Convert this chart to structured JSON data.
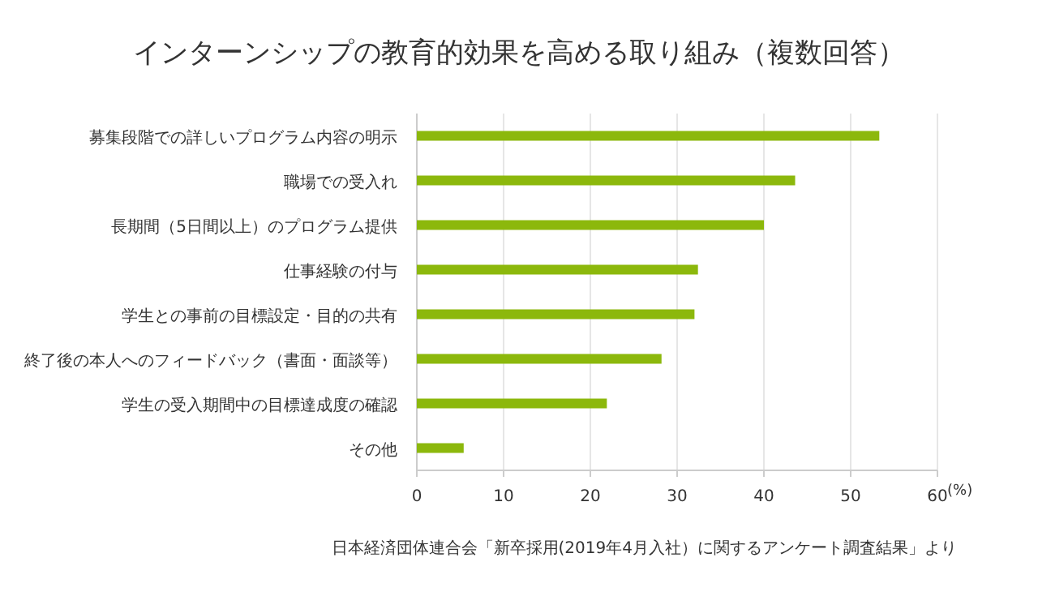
{
  "chart_data": {
    "type": "bar",
    "orientation": "horizontal",
    "title": "インターンシップの教育的効果を高める取り組み（複数回答）",
    "categories": [
      "募集段階での詳しいプログラム内容の明示",
      "職場での受入れ",
      "長期間（5日間以上）のプログラム提供",
      "仕事経験の付与",
      "学生との事前の目標設定・目的の共有",
      "終了後の本人へのフィードバック（書面・面談等）",
      "学生の受入期間中の目標達成度の確認",
      "その他"
    ],
    "values": [
      53.3,
      43.6,
      40.0,
      32.4,
      32.0,
      28.2,
      21.9,
      5.4
    ],
    "color": "#8cb80c",
    "xlim": [
      0,
      60
    ],
    "xticks": [
      0,
      10,
      20,
      30,
      40,
      50,
      60
    ],
    "xlabel": "(%)",
    "grid": "x",
    "annotations": [
      "日本経済団体連合会「新卒採用(2019年4月入社）に関するアンケート調査結果」より"
    ]
  }
}
